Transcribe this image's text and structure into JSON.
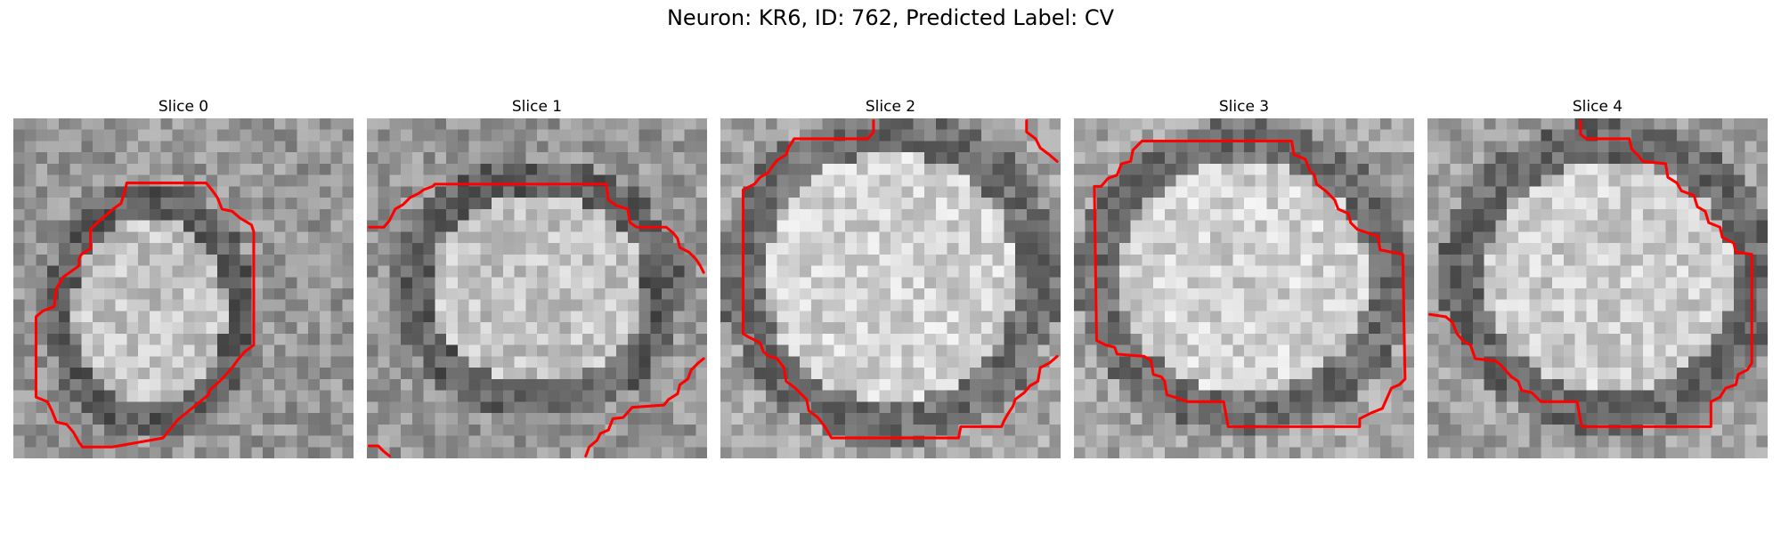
{
  "title": "Neuron: KR6, ID: 762, Predicted Label: CV",
  "panels": [
    {
      "label": "Slice 0"
    },
    {
      "label": "Slice 1"
    },
    {
      "label": "Slice 2"
    },
    {
      "label": "Slice 3"
    },
    {
      "label": "Slice 4"
    }
  ],
  "colors": {
    "contour": "#ff0000",
    "background": "#ffffff"
  }
}
